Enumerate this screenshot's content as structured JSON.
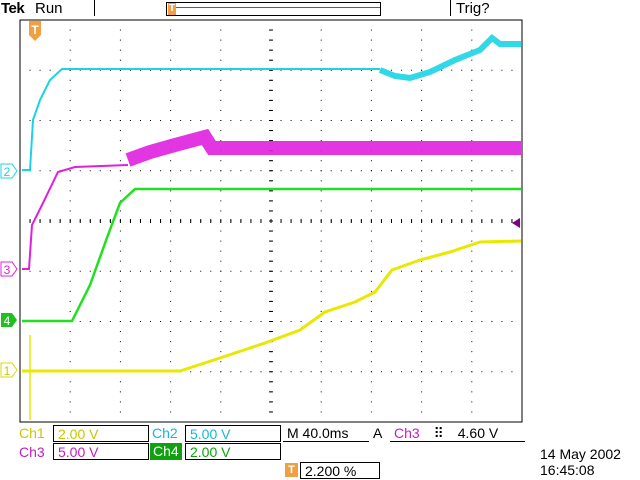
{
  "header": {
    "brand": "Tek",
    "status": "Run",
    "trigger_state": "Trig?"
  },
  "colors": {
    "ch1": "#e8e800",
    "ch2": "#1ad4e6",
    "ch3": "#e020e0",
    "ch4": "#20e020",
    "trigger": "#f0a040",
    "grid": "#000000"
  },
  "markers": {
    "ch1": "1",
    "ch2": "2",
    "ch3": "3",
    "ch4": "4",
    "trigger_icon": "trigger-T-icon"
  },
  "readout": {
    "ch1_label": "Ch1",
    "ch1_scale": "2.00 V",
    "ch2_label": "Ch2",
    "ch2_scale": "5.00 V",
    "ch3_label": "Ch3",
    "ch3_scale": "5.00 V",
    "ch4_label": "Ch4",
    "ch4_scale": "2.00 V",
    "timebase": "M 40.0ms",
    "trigger_mode": "A",
    "trigger_source": "Ch3",
    "trigger_slope_icon": "rising-edge-icon",
    "trigger_level": "4.60 V",
    "trigger_position_icon": "T",
    "trigger_position": "2.200 %"
  },
  "timestamp": {
    "date": "14 May 2002",
    "time": "16:45:08"
  }
}
